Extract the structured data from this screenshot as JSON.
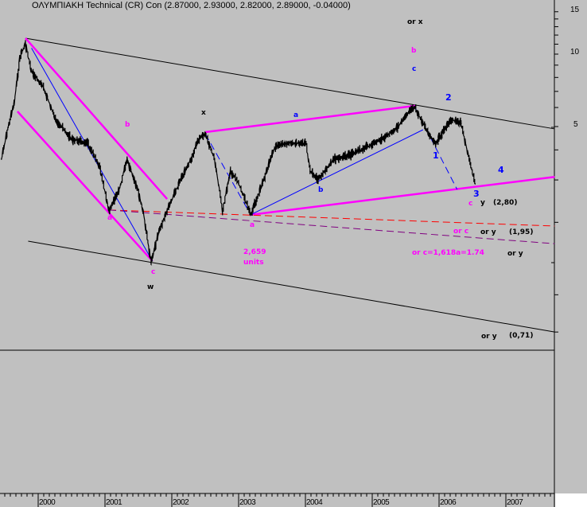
{
  "chart_data": {
    "type": "line",
    "title": "ΟΛΥΜΠΙΑΚΗ Technical (CR) Con (2.87000, 2.93000, 2.82000, 2.89000, -0.04000)",
    "y_scale": "log",
    "ylim": [
      0.59,
      16.8
    ],
    "xlim": [
      1999.43,
      2007.73
    ],
    "y_ticks": [
      15,
      10,
      5
    ],
    "x_ticks": [
      "2000",
      "2001",
      "2002",
      "2003",
      "2004",
      "2005",
      "2006",
      "2007"
    ],
    "grid": false,
    "price_series": {
      "x": [
        1999.45,
        1999.55,
        1999.64,
        1999.73,
        1999.81,
        1999.9,
        2000.08,
        2000.26,
        2000.5,
        2000.74,
        2000.92,
        2001.06,
        2001.21,
        2001.33,
        2001.48,
        2001.57,
        2001.69,
        2001.81,
        2001.93,
        2002.11,
        2002.29,
        2002.4,
        2002.5,
        2002.64,
        2002.76,
        2002.88,
        2003.0,
        2003.18,
        2003.36,
        2003.54,
        2003.71,
        2004.01,
        2004.07,
        2004.19,
        2004.43,
        2004.67,
        2004.9,
        2005.14,
        2005.38,
        2005.56,
        2005.64,
        2005.76,
        2005.86,
        2005.95,
        2006.1,
        2006.19,
        2006.33,
        2006.45,
        2006.54
      ],
      "y": [
        3.66,
        4.96,
        6.24,
        9.85,
        11.04,
        8.46,
        7.26,
        5.35,
        4.43,
        4.26,
        3.39,
        2.23,
        2.7,
        3.66,
        2.8,
        2.23,
        1.36,
        1.84,
        2.23,
        2.91,
        3.66,
        4.43,
        4.67,
        3.66,
        2.23,
        3.26,
        2.91,
        2.15,
        2.91,
        4.1,
        4.26,
        4.26,
        3.26,
        3.02,
        3.66,
        3.8,
        4.1,
        4.43,
        4.96,
        5.78,
        6.0,
        5.15,
        4.6,
        4.26,
        4.96,
        5.35,
        5.15,
        3.66,
        2.89
      ]
    },
    "trend_lines": [
      {
        "color": "#000000",
        "style": "solid",
        "from": [
          1999.81,
          11.65
        ],
        "to": [
          2007.73,
          4.89
        ]
      },
      {
        "color": "#000000",
        "style": "solid",
        "from": [
          1999.85,
          1.67
        ],
        "to": [
          2007.73,
          0.7
        ]
      },
      {
        "color": "#ff00ff",
        "style": "thick",
        "from": [
          1999.81,
          11.65
        ],
        "to": [
          2001.93,
          2.5
        ]
      },
      {
        "color": "#ff00ff",
        "style": "thick",
        "from": [
          1999.69,
          5.78
        ],
        "to": [
          2001.71,
          1.38
        ]
      },
      {
        "color": "#ff00ff",
        "style": "thick",
        "from": [
          2002.5,
          4.74
        ],
        "to": [
          2005.64,
          6.1
        ]
      },
      {
        "color": "#ff00ff",
        "style": "thick",
        "from": [
          2003.18,
          2.15
        ],
        "to": [
          2007.73,
          3.09
        ]
      },
      {
        "color": "#ff0000",
        "style": "dashed",
        "from": [
          2001.06,
          2.25
        ],
        "to": [
          2007.73,
          1.93
        ]
      },
      {
        "color": "#800080",
        "style": "dashed",
        "from": [
          2001.06,
          2.25
        ],
        "to": [
          2007.73,
          1.63
        ]
      },
      {
        "color": "#0000ff",
        "style": "solid",
        "from": [
          1999.9,
          10.6
        ],
        "to": [
          2001.71,
          1.38
        ]
      },
      {
        "color": "#0000ff",
        "style": "solid",
        "from": [
          2003.18,
          2.15
        ],
        "to": [
          2005.76,
          4.85
        ]
      },
      {
        "color": "#0000ff",
        "style": "dashed",
        "from": [
          2002.5,
          4.67
        ],
        "to": [
          2003.18,
          2.15
        ]
      },
      {
        "color": "#0000ff",
        "style": "dashed",
        "from": [
          2005.64,
          6.0
        ],
        "to": [
          2006.27,
          2.74
        ]
      }
    ],
    "annotations": [
      {
        "text": "or x",
        "color": "#000000"
      },
      {
        "text": "b",
        "color": "#ff00ff"
      },
      {
        "text": "c",
        "color": "#0000ff"
      },
      {
        "text": "2",
        "color": "#0000ff"
      },
      {
        "text": "b",
        "color": "#ff00ff"
      },
      {
        "text": "x",
        "color": "#000000"
      },
      {
        "text": "a",
        "color": "#0000ff"
      },
      {
        "text": "1",
        "color": "#0000ff"
      },
      {
        "text": "4",
        "color": "#0000ff"
      },
      {
        "text": "3",
        "color": "#0000ff"
      },
      {
        "text": "b",
        "color": "#0000ff"
      },
      {
        "text": "a",
        "color": "#ff00ff"
      },
      {
        "text": "a",
        "color": "#ff00ff"
      },
      {
        "text": "c",
        "color": "#ff00ff"
      },
      {
        "text": "y",
        "color": "#000000"
      },
      {
        "text": "(2,80)",
        "color": "#000000"
      },
      {
        "text": "or c",
        "color": "#ff00ff"
      },
      {
        "text": "or y",
        "color": "#000000"
      },
      {
        "text": "(1,95)",
        "color": "#000000"
      },
      {
        "text": "2,659",
        "color": "#ff00ff"
      },
      {
        "text": "units",
        "color": "#ff00ff"
      },
      {
        "text": "or c=1,618a=1.74",
        "color": "#ff00ff"
      },
      {
        "text": "or y",
        "color": "#000000"
      },
      {
        "text": "c",
        "color": "#ff00ff"
      },
      {
        "text": "w",
        "color": "#000000"
      },
      {
        "text": "or y",
        "color": "#000000"
      },
      {
        "text": "(0,71)",
        "color": "#000000"
      }
    ]
  }
}
